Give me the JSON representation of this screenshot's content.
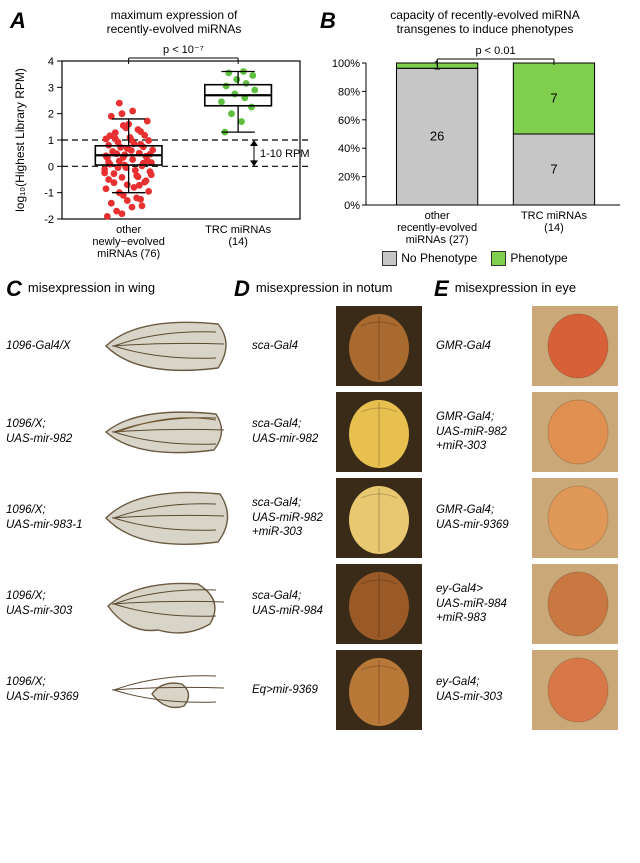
{
  "panelA": {
    "label": "A",
    "title_line1": "maximum expression of",
    "title_line2": "recently-evolved miRNAs",
    "p_text": "p < 10⁻⁷",
    "ylabel": "log₁₀(Highest Library RPM)",
    "bracket_label": "1-10 RPM",
    "ylim": [
      -2,
      4
    ],
    "yticks": [
      -2,
      -1,
      0,
      1,
      2,
      3,
      4
    ],
    "ref_lines": [
      0,
      1
    ],
    "categories": [
      {
        "line1": "other",
        "line2": "newly−evolved",
        "line3": "miRNAs (76)"
      },
      {
        "line1": "TRC miRNAs",
        "line2": "(14)",
        "line3": ""
      }
    ],
    "boxes": [
      {
        "q1": 0.05,
        "median": 0.42,
        "q3": 0.78,
        "wlow": -1.0,
        "whigh": 1.8,
        "color": "#000000"
      },
      {
        "q1": 2.3,
        "median": 2.7,
        "q3": 3.1,
        "wlow": 1.3,
        "whigh": 3.6,
        "color": "#000000"
      }
    ],
    "point_color_a": "#e83030",
    "point_color_b": "#5fbf3f",
    "points_a": [
      [
        -0.32,
        -1.9
      ],
      [
        -0.18,
        -1.7
      ],
      [
        0.05,
        -1.55
      ],
      [
        -0.26,
        -1.4
      ],
      [
        0.18,
        -1.25
      ],
      [
        -0.08,
        -1.1
      ],
      [
        0.3,
        -0.95
      ],
      [
        -0.34,
        -0.85
      ],
      [
        -0.02,
        -0.7
      ],
      [
        0.24,
        -0.6
      ],
      [
        -0.3,
        -0.5
      ],
      [
        -0.1,
        -0.42
      ],
      [
        0.12,
        -0.35
      ],
      [
        -0.22,
        -0.28
      ],
      [
        0.32,
        -0.2
      ],
      [
        -0.36,
        -0.12
      ],
      [
        -0.04,
        -0.05
      ],
      [
        0.2,
        0.02
      ],
      [
        -0.28,
        0.08
      ],
      [
        0.34,
        0.14
      ],
      [
        -0.14,
        0.2
      ],
      [
        0.06,
        0.26
      ],
      [
        -0.32,
        0.32
      ],
      [
        0.26,
        0.38
      ],
      [
        -0.06,
        0.44
      ],
      [
        0.16,
        0.5
      ],
      [
        -0.24,
        0.56
      ],
      [
        0.36,
        0.62
      ],
      [
        -0.02,
        0.68
      ],
      [
        0.22,
        0.74
      ],
      [
        -0.3,
        0.8
      ],
      [
        0.08,
        0.86
      ],
      [
        -0.16,
        0.92
      ],
      [
        0.3,
        0.98
      ],
      [
        -0.34,
        1.04
      ],
      [
        0.02,
        1.1
      ],
      [
        0.24,
        1.18
      ],
      [
        -0.2,
        1.28
      ],
      [
        0.14,
        1.4
      ],
      [
        -0.08,
        1.55
      ],
      [
        0.28,
        1.72
      ],
      [
        -0.26,
        1.9
      ],
      [
        0.06,
        2.1
      ],
      [
        -0.14,
        2.4
      ],
      [
        -0.3,
        0.15
      ],
      [
        0.1,
        -0.15
      ],
      [
        -0.18,
        0.48
      ],
      [
        0.04,
        0.6
      ],
      [
        -0.12,
        0.72
      ],
      [
        0.18,
        0.84
      ],
      [
        -0.06,
        0.05
      ],
      [
        0.14,
        -0.4
      ],
      [
        -0.22,
        -0.62
      ],
      [
        0.08,
        -0.8
      ],
      [
        -0.02,
        -1.3
      ],
      [
        0.2,
        -1.5
      ],
      [
        -0.1,
        -1.8
      ],
      [
        -0.34,
        0.4
      ],
      [
        0.28,
        0.22
      ],
      [
        0.34,
        -0.32
      ],
      [
        -0.16,
        -0.05
      ],
      [
        0.04,
        1.0
      ],
      [
        -0.28,
        1.16
      ],
      [
        0.18,
        1.32
      ],
      [
        -0.04,
        1.46
      ],
      [
        0.32,
        0.46
      ],
      [
        -0.36,
        -0.25
      ],
      [
        0.26,
        -0.55
      ],
      [
        -0.14,
        -1.0
      ],
      [
        0.12,
        -1.2
      ],
      [
        -0.2,
        1.05
      ],
      [
        0.0,
        1.6
      ],
      [
        -0.1,
        2.0
      ],
      [
        0.22,
        0.12
      ],
      [
        -0.08,
        0.34
      ],
      [
        0.16,
        -0.72
      ]
    ],
    "points_b": [
      [
        -0.2,
        1.3
      ],
      [
        0.05,
        1.7
      ],
      [
        -0.1,
        2.0
      ],
      [
        0.2,
        2.25
      ],
      [
        -0.25,
        2.45
      ],
      [
        0.1,
        2.6
      ],
      [
        -0.05,
        2.75
      ],
      [
        0.25,
        2.9
      ],
      [
        -0.18,
        3.05
      ],
      [
        0.12,
        3.15
      ],
      [
        -0.02,
        3.3
      ],
      [
        0.22,
        3.45
      ],
      [
        -0.14,
        3.55
      ],
      [
        0.08,
        3.6
      ]
    ],
    "background": "#ffffff",
    "axis_color": "#000000"
  },
  "panelB": {
    "label": "B",
    "title_line1": "capacity of recently-evolved miRNA",
    "title_line2": "transgenes to induce phenotypes",
    "p_text": "p < 0.01",
    "ylabel_ticks": [
      "0%",
      "20%",
      "40%",
      "60%",
      "80%",
      "100%"
    ],
    "categories": [
      {
        "line1": "other",
        "line2": "recently-evolved",
        "line3": "miRNAs (27)"
      },
      {
        "line1": "TRC miRNAs",
        "line2": "(14)",
        "line3": ""
      }
    ],
    "bars": [
      {
        "no_pct": 96.3,
        "yes_pct": 3.7,
        "no_n": "26",
        "yes_n": "1"
      },
      {
        "no_pct": 50.0,
        "yes_pct": 50.0,
        "no_n": "7",
        "yes_n": "7"
      }
    ],
    "color_no": "#c6c6c6",
    "color_yes": "#7fce4d",
    "legend_no": "No Phenotype",
    "legend_yes": "Phenotype",
    "border_color": "#000000",
    "grid_color": "#e0e0e0"
  },
  "panelC": {
    "label": "C",
    "header": "misexpression in wing",
    "rows": [
      {
        "l1": "1096-Gal4/X",
        "l2": ""
      },
      {
        "l1": "1096/X;",
        "l2": "UAS-mir-982"
      },
      {
        "l1": "1096/X;",
        "l2": "UAS-mir-983-1"
      },
      {
        "l1": "1096/X;",
        "l2": "UAS-mir-303"
      },
      {
        "l1": "1096/X;",
        "l2": "UAS-mir-9369"
      }
    ]
  },
  "panelD": {
    "label": "D",
    "header": "misexpression in notum",
    "rows": [
      {
        "l1": "sca-Gal4",
        "l2": "",
        "l3": ""
      },
      {
        "l1": "sca-Gal4;",
        "l2": "UAS-mir-982",
        "l3": ""
      },
      {
        "l1": "sca-Gal4;",
        "l2": "UAS-miR-982",
        "l3": "+miR-303"
      },
      {
        "l1": "sca-Gal4;",
        "l2": "UAS-miR-984",
        "l3": ""
      },
      {
        "l1": "Eq>mir-9369",
        "l2": "",
        "l3": ""
      }
    ]
  },
  "panelE": {
    "label": "E",
    "header": "misexpression in eye",
    "rows": [
      {
        "l1": "GMR-Gal4",
        "l2": "",
        "l3": ""
      },
      {
        "l1": "GMR-Gal4;",
        "l2": "UAS-miR-982",
        "l3": "+miR-303"
      },
      {
        "l1": "GMR-Gal4;",
        "l2": "UAS-mir-9369",
        "l3": ""
      },
      {
        "l1": "ey-Gal4>",
        "l2": "UAS-miR-984",
        "l3": "+miR-983"
      },
      {
        "l1": "ey-Gal4;",
        "l2": "UAS-mir-303",
        "l3": ""
      }
    ]
  },
  "wing_svg": {
    "fill": "#d8d4c8",
    "stroke": "#6b5a40",
    "vein": "#5a4a30"
  },
  "notum_colors": [
    "#a86a2e",
    "#e8c050",
    "#e8c870",
    "#9a5a28",
    "#b87838"
  ],
  "eye_colors": [
    "#d86038",
    "#e09050",
    "#e09858",
    "#c87840",
    "#d87848"
  ]
}
